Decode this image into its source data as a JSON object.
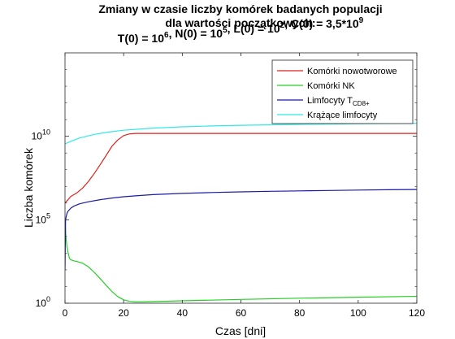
{
  "chart_data": {
    "type": "line",
    "y_scale": "log",
    "title_lines": [
      "Zmiany w czasie liczby komórek badanych populacji",
      "dla wartości początkowych:",
      "T(0) = 10^6, N(0) = 10^5, L(0) = 10^2, C(0) = 3,5*10^9"
    ],
    "xlabel": "Czas [dni]",
    "ylabel": "Liczba komórek",
    "xlim": [
      0,
      120
    ],
    "ylim": [
      1,
      1000000000000000.0
    ],
    "xticks": [
      0,
      20,
      40,
      60,
      80,
      100,
      120
    ],
    "yticks": [
      {
        "value": 1,
        "mantissa": "10",
        "exp": "0"
      },
      {
        "value": 100000,
        "mantissa": "10",
        "exp": "5"
      },
      {
        "value": 10000000000,
        "mantissa": "10",
        "exp": "10"
      }
    ],
    "grid": false,
    "legend_position": "top-right",
    "series": [
      {
        "name": "Komórki nowotworowe",
        "color": "#e0201b",
        "x": [
          0,
          2,
          4,
          6,
          8,
          10,
          12,
          14,
          16,
          18,
          20,
          22,
          24,
          26,
          30,
          40,
          60,
          80,
          100,
          120
        ],
        "y": [
          1000000,
          2500000.0,
          4000000.0,
          8000000.0,
          20000000.0,
          60000000.0,
          200000000.0,
          700000000.0,
          2500000000.0,
          6000000000.0,
          11000000000.0,
          14000000000.0,
          15000000000.0,
          15000000000.0,
          15000000000.0,
          15000000000.0,
          15000000000.0,
          15000000000.0,
          15000000000.0,
          15000000000.0
        ]
      },
      {
        "name": "Komórki NK",
        "color": "#25d025",
        "x": [
          0,
          0.3,
          0.6,
          1,
          1.5,
          2,
          3,
          4,
          6,
          8,
          10,
          12,
          14,
          16,
          18,
          20,
          22,
          24,
          26,
          30,
          40,
          60,
          80,
          100,
          120
        ],
        "y": [
          100000,
          10000,
          3000,
          1200,
          500,
          400,
          350,
          320,
          250,
          150,
          70,
          30,
          12,
          5,
          2.5,
          1.6,
          1.3,
          1.2,
          1.2,
          1.25,
          1.4,
          1.7,
          2.0,
          2.3,
          2.6
        ]
      },
      {
        "name": "Limfocyty T",
        "name_subscript": "CD8+",
        "color": "#1a1aa6",
        "x": [
          0,
          0.2,
          0.4,
          0.7,
          1,
          1.5,
          2,
          3,
          5,
          8,
          12,
          16,
          20,
          25,
          30,
          40,
          50,
          60,
          70,
          80,
          90,
          100,
          110,
          120
        ],
        "y": [
          100,
          100000,
          150000,
          250000,
          320000,
          400000,
          500000,
          650000,
          900000,
          1200000.0,
          1600000.0,
          2000000.0,
          2400000.0,
          2800000.0,
          3200000.0,
          3800000.0,
          4300000.0,
          4700000.0,
          5100000.0,
          5400000.0,
          5700000.0,
          6000000.0,
          6300000.0,
          6500000.0
        ]
      },
      {
        "name": "Krążące limfocyty",
        "color": "#32e8e8",
        "x": [
          0,
          2,
          5,
          10,
          15,
          20,
          30,
          40,
          50,
          60,
          80,
          100,
          120
        ],
        "y": [
          3500000000.0,
          5000000000.0,
          8000000000.0,
          13000000000.0,
          18000000000.0,
          23000000000.0,
          31000000000.0,
          37000000000.0,
          42000000000.0,
          46000000000.0,
          52000000000.0,
          57000000000.0,
          60000000000.0
        ]
      }
    ]
  }
}
